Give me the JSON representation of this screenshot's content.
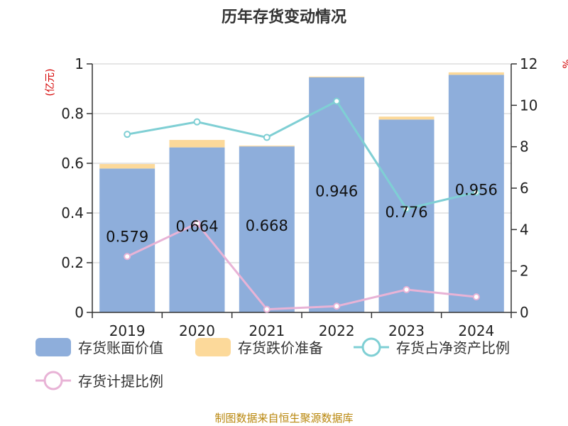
{
  "title": "历年存货变动情况",
  "source": "制图数据来自恒生聚源数据库",
  "colors": {
    "book": "#8eaedb",
    "reserve": "#fcd99a",
    "share": "#7fcfd4",
    "ratio": "#e8b3d6",
    "axis": "#333333",
    "unit": "#d40000"
  },
  "chart_data": {
    "type": "bar",
    "title": "历年存货变动情况",
    "categories": [
      "2019",
      "2020",
      "2021",
      "2022",
      "2023",
      "2024"
    ],
    "left_axis": {
      "unit": "(亿元)",
      "ylim": [
        0,
        1
      ],
      "ticks": [
        "0",
        "0.2",
        "0.4",
        "0.6",
        "0.8",
        "1"
      ]
    },
    "right_axis": {
      "unit": "%",
      "ylim": [
        0,
        12
      ],
      "ticks": [
        "0",
        "2",
        "4",
        "6",
        "8",
        "10",
        "12"
      ]
    },
    "series": [
      {
        "name": "存货账面价值",
        "type": "bar",
        "axis": "left",
        "values": [
          0.579,
          0.664,
          0.668,
          0.946,
          0.776,
          0.956
        ],
        "labels": [
          "0.579",
          "0.664",
          "0.668",
          "0.946",
          "0.776",
          "0.956"
        ]
      },
      {
        "name": "存货跌价准备",
        "type": "bar",
        "axis": "left",
        "stacked": true,
        "values": [
          0.018,
          0.03,
          0.003,
          0.003,
          0.012,
          0.01
        ]
      },
      {
        "name": "存货占净资产比例",
        "type": "line",
        "axis": "right",
        "values": [
          8.6,
          9.2,
          8.45,
          10.2,
          5.0,
          5.8
        ]
      },
      {
        "name": "存货计提比例",
        "type": "line",
        "axis": "right",
        "values": [
          2.7,
          4.3,
          0.15,
          0.3,
          1.1,
          0.75
        ]
      }
    ],
    "grid": true,
    "legend": "bottom"
  }
}
